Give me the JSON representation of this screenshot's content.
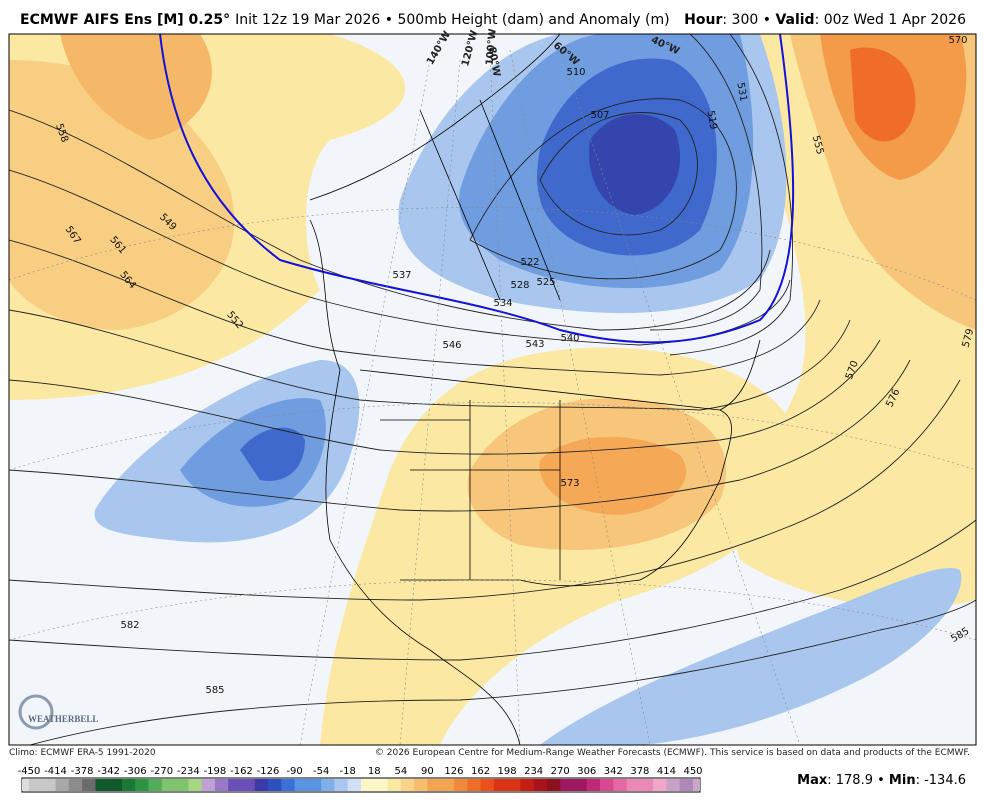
{
  "header": {
    "model": "ECMWF AIFS Ens [M] 0.25°",
    "description": "Init 12z 19 Mar 2026 • 500mb Height (dam) and Anomaly (m)",
    "hour_label": "Hour",
    "hour_value": ": 300 • ",
    "valid_label": "Valid",
    "valid_value": ": 00z Wed 1 Apr 2026"
  },
  "longitudes": [
    "140°W",
    "120°W",
    "100°W",
    "80°W",
    "60°W",
    "40°W"
  ],
  "contour_labels": [
    "558",
    "567",
    "561",
    "564",
    "549",
    "552",
    "537",
    "534",
    "528",
    "522",
    "525",
    "546",
    "543",
    "540",
    "510",
    "507",
    "519",
    "531",
    "555",
    "570",
    "579",
    "570",
    "576",
    "573",
    "582",
    "585",
    "585"
  ],
  "logo": "WEATHERBELL",
  "footer": {
    "climo": "Climo: ECMWF ERA-5 1991-2020",
    "copyright": "© 2026 European Centre for Medium-Range Weather Forecasts (ECMWF). This service is based on data and products of the ECMWF."
  },
  "colorbar": {
    "labels": [
      "-450",
      "-414",
      "-378",
      "-342",
      "-306",
      "-270",
      "-234",
      "-198",
      "-162",
      "-126",
      "-90",
      "-54",
      "-18",
      "18",
      "54",
      "90",
      "126",
      "162",
      "198",
      "234",
      "270",
      "306",
      "342",
      "378",
      "414",
      "450"
    ]
  },
  "stats": {
    "max_label": "Max",
    "max_value": ": 178.9 • ",
    "min_label": "Min",
    "min_value": ": -134.6"
  }
}
